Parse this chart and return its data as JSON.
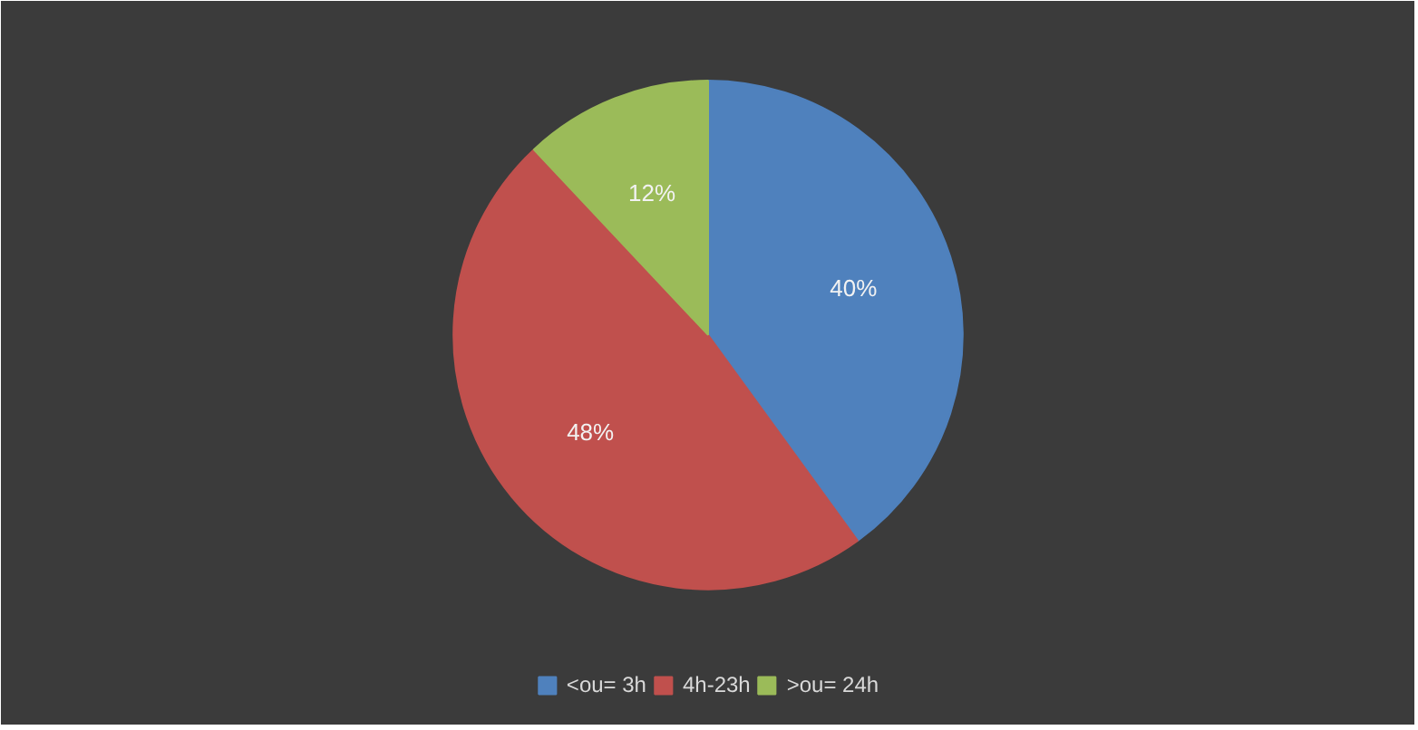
{
  "chart_data": {
    "type": "pie",
    "categories": [
      "<ou= 3h",
      "4h-23h",
      ">ou= 24h"
    ],
    "values": [
      40,
      48,
      12
    ],
    "colors": [
      "#4f81bd",
      "#c0504d",
      "#9bbb59"
    ],
    "value_labels": [
      "40%",
      "48%",
      "12%"
    ],
    "legend": "bottom"
  }
}
